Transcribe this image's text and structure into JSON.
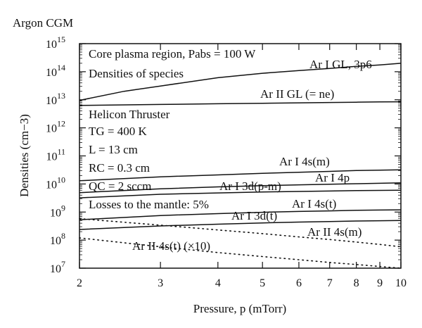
{
  "chart_data": {
    "type": "line",
    "title": "Argon CGM",
    "xlabel": "Pressure, p (mTorr)",
    "ylabel": "Densities (cm−3)",
    "x_scale": "log",
    "y_scale": "log",
    "xlim": [
      2,
      10
    ],
    "ylim": [
      10000000.0,
      1000000000000000.0
    ],
    "grid": false,
    "legend": "none",
    "x_ticks": [
      {
        "value": 2,
        "label": "2"
      },
      {
        "value": 3,
        "label": "3"
      },
      {
        "value": 4,
        "label": "4"
      },
      {
        "value": 5,
        "label": "5"
      },
      {
        "value": 6,
        "label": "6"
      },
      {
        "value": 7,
        "label": "7"
      },
      {
        "value": 8,
        "label": "8"
      },
      {
        "value": 9,
        "label": "9"
      },
      {
        "value": 10,
        "label": "10"
      }
    ],
    "y_ticks": [
      {
        "value": 10000000.0,
        "base": "10",
        "exp": "7"
      },
      {
        "value": 100000000.0,
        "base": "10",
        "exp": "8"
      },
      {
        "value": 1000000000.0,
        "base": "10",
        "exp": "9"
      },
      {
        "value": 10000000000.0,
        "base": "10",
        "exp": "10"
      },
      {
        "value": 100000000000.0,
        "base": "10",
        "exp": "11"
      },
      {
        "value": 1000000000000.0,
        "base": "10",
        "exp": "12"
      },
      {
        "value": 10000000000000.0,
        "base": "10",
        "exp": "13"
      },
      {
        "value": 100000000000000.0,
        "base": "10",
        "exp": "14"
      },
      {
        "value": 1000000000000000.0,
        "base": "10",
        "exp": "15"
      }
    ],
    "annotations": [
      "Core plasma region, Pabs = 100 W",
      "Densities of species",
      "Helicon Thruster",
      "TG = 400 K",
      "L = 13 cm",
      "RC = 0.3 cm",
      "QC = 2 sccm",
      "Losses to the mantle: 5%"
    ],
    "series": [
      {
        "name": "Ar I GL, 3p6",
        "style": "solid",
        "x": [
          2,
          2.5,
          3,
          4,
          5,
          6,
          7,
          8,
          9,
          10
        ],
        "y": [
          9500000000000.0,
          20000000000000.0,
          31000000000000.0,
          61000000000000.0,
          88000000000000.0,
          110000000000000.0,
          130000000000000.0,
          155000000000000.0,
          175000000000000.0,
          200000000000000.0
        ]
      },
      {
        "name": "Ar II GL (= ne)",
        "style": "solid",
        "x": [
          2,
          3,
          4,
          5,
          6,
          7,
          8,
          9,
          10
        ],
        "y": [
          6300000000000.0,
          6800000000000.0,
          7200000000000.0,
          7500000000000.0,
          7800000000000.0,
          8000000000000.0,
          8200000000000.0,
          8400000000000.0,
          8500000000000.0
        ]
      },
      {
        "name": "Ar I 4s(m)",
        "style": "solid",
        "x": [
          2,
          3,
          4,
          5,
          6,
          7,
          8,
          9,
          10
        ],
        "y": [
          13000000000.0,
          18000000000.0,
          21000000000.0,
          24000000000.0,
          26000000000.0,
          28000000000.0,
          30000000000.0,
          31000000000.0,
          32000000000.0
        ]
      },
      {
        "name": "Ar I 4p",
        "style": "solid",
        "x": [
          2,
          3,
          4,
          5,
          6,
          7,
          8,
          9,
          10
        ],
        "y": [
          4900000000.0,
          6700000000.0,
          7900000000.0,
          8700000000.0,
          9300000000.0,
          9800000000.0,
          10200000000.0,
          10600000000.0,
          11000000000.0
        ]
      },
      {
        "name": "Ar I 3d(p-m)",
        "style": "solid",
        "x": [
          2,
          3,
          4,
          5,
          6,
          7,
          8,
          9,
          10
        ],
        "y": [
          3200000000.0,
          4300000000.0,
          4800000000.0,
          5200000000.0,
          5400000000.0,
          5600000000.0,
          5800000000.0,
          5900000000.0,
          6000000000.0
        ]
      },
      {
        "name": "Ar I 4s(t)",
        "style": "solid",
        "x": [
          2,
          3,
          4,
          5,
          6,
          7,
          8,
          9,
          10
        ],
        "y": [
          530000000.0,
          750000000.0,
          880000000.0,
          980000000.0,
          1050000000.0,
          1100000000.0,
          1150000000.0,
          1180000000.0,
          1200000000.0
        ]
      },
      {
        "name": "Ar I 3d(t)",
        "style": "solid",
        "x": [
          2,
          3,
          4,
          5,
          6,
          7,
          8,
          9,
          10
        ],
        "y": [
          240000000.0,
          320000000.0,
          370000000.0,
          410000000.0,
          440000000.0,
          460000000.0,
          480000000.0,
          490000000.0,
          500000000.0
        ]
      },
      {
        "name": "Ar II 4s(m)",
        "style": "dotted",
        "x": [
          2,
          3,
          4,
          5,
          6,
          7,
          8,
          9,
          10
        ],
        "y": [
          580000000.0,
          340000000.0,
          230000000.0,
          170000000.0,
          130000000.0,
          105000000.0,
          85000000.0,
          70000000.0,
          58000000.0
        ]
      },
      {
        "name": "Ar II 4s(t) (×10)",
        "style": "dotted",
        "x": [
          2,
          3,
          4,
          5,
          6,
          7,
          8,
          9,
          10
        ],
        "y": [
          120000000.0,
          58000000.0,
          36000000.0,
          26000000.0,
          20000000.0,
          16000000.0,
          13500000.0,
          11500000.0,
          10000000.0
        ]
      }
    ]
  }
}
